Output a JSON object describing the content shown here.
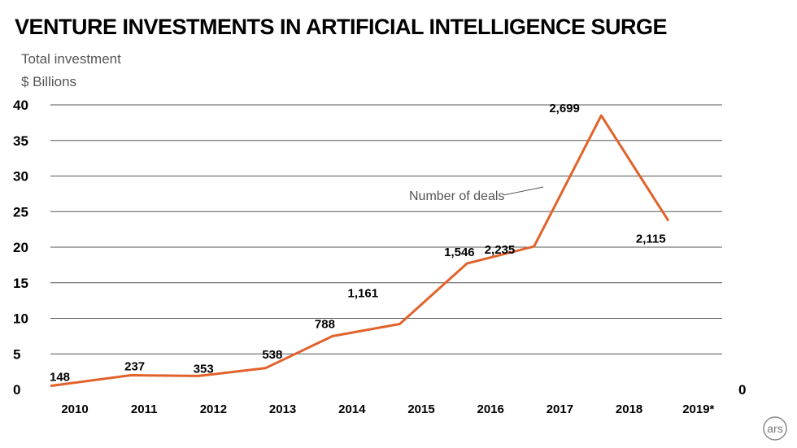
{
  "chart_data": {
    "type": "line",
    "title": "VENTURE INVESTMENTS IN ARTIFICIAL INTELLIGENCE SURGE",
    "ylabel_lines": [
      "Total investment",
      "$ Billions"
    ],
    "categories": [
      "2010",
      "2011",
      "2012",
      "2013",
      "2014",
      "2015",
      "2016",
      "2017",
      "2018",
      "2019*"
    ],
    "yticks": [
      0,
      5,
      10,
      15,
      20,
      25,
      30,
      35,
      40
    ],
    "ylim": [
      0,
      40
    ],
    "right_axis_label": "0",
    "grid": true,
    "series": [
      {
        "color": "#e2622c",
        "points": [
          {
            "x": 2009.6,
            "y": 0.5
          },
          {
            "x": 2010.8,
            "y": 2.0
          },
          {
            "x": 2011.8,
            "y": 1.9
          },
          {
            "x": 2012.8,
            "y": 3.0
          },
          {
            "x": 2013.8,
            "y": 7.5
          },
          {
            "x": 2014.8,
            "y": 9.2
          },
          {
            "x": 2015.8,
            "y": 17.7
          },
          {
            "x": 2016.8,
            "y": 20.1
          },
          {
            "x": 2017.8,
            "y": 38.5
          },
          {
            "x": 2018.8,
            "y": 23.7
          }
        ]
      }
    ],
    "deal_labels": [
      "148",
      "237",
      "353",
      "538",
      "788",
      "1,161",
      "1,546",
      "2,235",
      "2,699",
      "2,115"
    ],
    "annotation": "Number of deals",
    "logo": "ars"
  }
}
